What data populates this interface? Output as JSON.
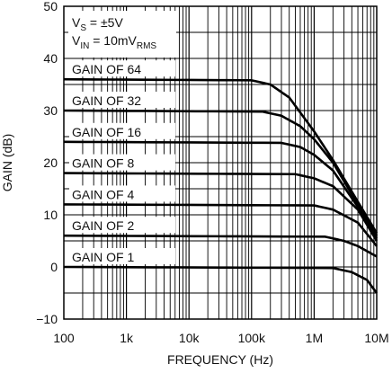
{
  "chart_data": {
    "type": "line",
    "title": "",
    "xlabel": "FREQUENCY (Hz)",
    "ylabel": "GAIN (dB)",
    "xscale": "log",
    "xlim": [
      100,
      10000000
    ],
    "ylim": [
      -10,
      50
    ],
    "x_ticks": [
      100,
      1000,
      10000,
      100000,
      1000000,
      10000000
    ],
    "x_tick_labels": [
      "100",
      "1k",
      "10k",
      "100k",
      "1M",
      "10M"
    ],
    "y_ticks": [
      -10,
      0,
      10,
      20,
      30,
      40,
      50
    ],
    "y_tick_labels": [
      "−10",
      "0",
      "10",
      "20",
      "30",
      "40",
      "50"
    ],
    "grid": true,
    "conditions": {
      "vs": {
        "main": "V",
        "sub": "S",
        "rest": " = ±5V"
      },
      "vin": {
        "main": "V",
        "sub": "IN",
        "rest": " = 10mV",
        "sub2": "RMS"
      }
    },
    "series": [
      {
        "name": "GAIN OF 64",
        "label": "GAIN OF 64",
        "dc_gain": 36,
        "x": [
          100,
          100000,
          200000,
          400000,
          1000000,
          2000000,
          5000000,
          10000000
        ],
        "y": [
          36,
          35.8,
          35,
          32.5,
          26,
          20.5,
          12.5,
          6.5
        ]
      },
      {
        "name": "GAIN OF 32",
        "label": "GAIN OF 32",
        "dc_gain": 30,
        "x": [
          100,
          150000,
          300000,
          600000,
          1000000,
          2000000,
          5000000,
          10000000
        ],
        "y": [
          30,
          29.8,
          29,
          27,
          24.5,
          20,
          12,
          6
        ]
      },
      {
        "name": "GAIN OF 16",
        "label": "GAIN OF 16",
        "dc_gain": 24,
        "x": [
          100,
          300000,
          600000,
          1000000,
          2000000,
          5000000,
          10000000
        ],
        "y": [
          24,
          23.8,
          23,
          21.5,
          18.5,
          11.5,
          5.5
        ]
      },
      {
        "name": "GAIN OF 8",
        "label": "GAIN OF 8",
        "dc_gain": 18,
        "x": [
          100,
          500000,
          1000000,
          2000000,
          5000000,
          10000000
        ],
        "y": [
          18,
          17.8,
          17,
          15.5,
          11,
          5
        ]
      },
      {
        "name": "GAIN OF 4",
        "label": "GAIN OF 4",
        "dc_gain": 12,
        "x": [
          100,
          1000000,
          2000000,
          5000000,
          10000000
        ],
        "y": [
          12,
          11.8,
          11,
          8.5,
          4
        ]
      },
      {
        "name": "GAIN OF 2",
        "label": "GAIN OF 2",
        "dc_gain": 6,
        "x": [
          100,
          1500000,
          3000000,
          5000000,
          10000000
        ],
        "y": [
          6,
          5.8,
          5,
          4,
          2
        ]
      },
      {
        "name": "GAIN OF 1",
        "label": "GAIN OF 1",
        "dc_gain": 0,
        "x": [
          100,
          2000000,
          4000000,
          7000000,
          10000000
        ],
        "y": [
          0,
          -0.2,
          -1,
          -2.5,
          -5
        ]
      }
    ]
  }
}
